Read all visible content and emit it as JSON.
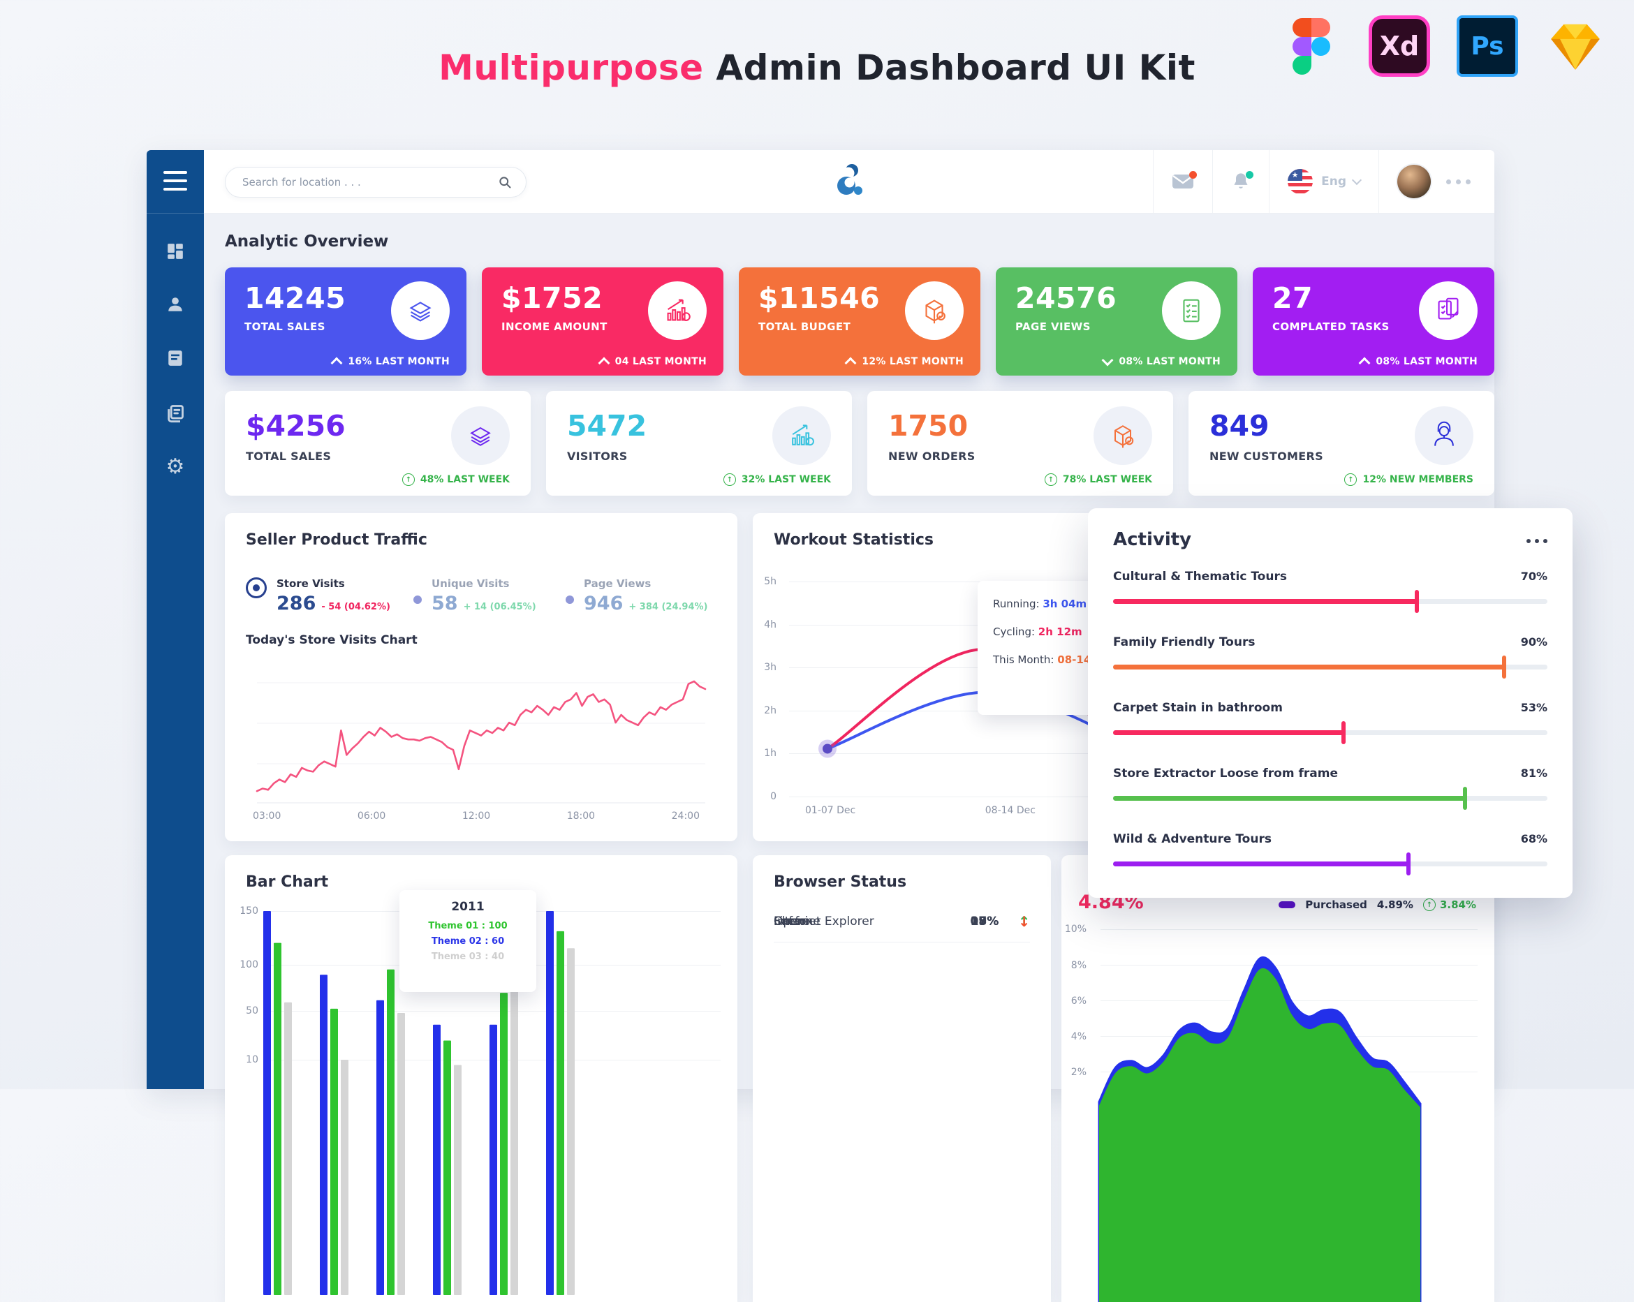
{
  "header": {
    "title_accent": "Multipurpose",
    "title_rest": " Admin Dashboard UI Kit",
    "accent_color": "#fa2d6c",
    "xd_label": "Xd",
    "ps_label": "Ps",
    "app_icons": [
      "figma",
      "adobe-xd",
      "photoshop",
      "sketch"
    ]
  },
  "topnav": {
    "search_placeholder": "Search for location . . .",
    "language": "Eng"
  },
  "sidebar": {
    "items": [
      "dashboard",
      "customers",
      "reports",
      "pages",
      "settings"
    ]
  },
  "overview": {
    "heading": "Analytic Overview",
    "cards": [
      {
        "value": "14245",
        "label": "TOTAL SALES",
        "delta": "16% LAST MONTH",
        "direction": "up",
        "color": "#4b55ee"
      },
      {
        "value": "$1752",
        "label": "INCOME AMOUNT",
        "delta": "04 LAST MONTH",
        "direction": "up",
        "color": "#f92a64"
      },
      {
        "value": "$11546",
        "label": "TOTAL BUDGET",
        "delta": "12% LAST MONTH",
        "direction": "up",
        "color": "#f4713b"
      },
      {
        "value": "24576",
        "label": "PAGE VIEWS",
        "delta": "08% LAST MONTH",
        "direction": "down",
        "color": "#58bf63"
      },
      {
        "value": "27",
        "label": "COMPLATED TASKS",
        "delta": "08% LAST MONTH",
        "direction": "up",
        "color": "#a21ef2"
      }
    ],
    "light_cards": [
      {
        "value": "$4256",
        "label": "TOTAL SALES",
        "note": "48% LAST WEEK",
        "value_color": "#6d28f0"
      },
      {
        "value": "5472",
        "label": "VISITORS",
        "note": "32% LAST WEEK",
        "value_color": "#38c2de"
      },
      {
        "value": "1750",
        "label": "NEW ORDERS",
        "note": "78% LAST WEEK",
        "value_color": "#f4713b"
      },
      {
        "value": "849",
        "label": "NEW CUSTOMERS",
        "note": "12% NEW MEMBERS",
        "value_color": "#2b2fd9"
      }
    ]
  },
  "seller_traffic": {
    "title": "Seller Product Traffic",
    "subtitle": "Today's Store Visits Chart",
    "metrics": [
      {
        "label": "Store Visits",
        "value": "286",
        "delta": "- 54 (04.62%)",
        "delta_color": "#f0245f",
        "value_color": "#2b4b8f",
        "active": true
      },
      {
        "label": "Unique Visits",
        "value": "58",
        "delta": "+ 14 (06.45%)",
        "delta_color": "#7ed8ac",
        "value_color": "#8ea9d2"
      },
      {
        "label": "Page Views",
        "value": "946",
        "delta": "+ 384 (24.94%)",
        "delta_color": "#7ed8ac",
        "value_color": "#8ea9d2"
      }
    ],
    "chart": {
      "type": "line",
      "color": "#f4537f",
      "xticks": [
        "03:00",
        "06:00",
        "12:00",
        "18:00",
        "24:00"
      ],
      "values": [
        8,
        10,
        9,
        14,
        17,
        15,
        21,
        19,
        26,
        24,
        23,
        28,
        31,
        29,
        27,
        55,
        36,
        41,
        45,
        50,
        54,
        51,
        57,
        54,
        50,
        52,
        49,
        48,
        48,
        47,
        49,
        50,
        48,
        46,
        42,
        40,
        25,
        43,
        55,
        53,
        51,
        55,
        53,
        57,
        55,
        61,
        59,
        67,
        71,
        69,
        74,
        71,
        67,
        73,
        71,
        77,
        79,
        84,
        74,
        81,
        83,
        77,
        79,
        75,
        61,
        67,
        63,
        61,
        59,
        65,
        69,
        67,
        73,
        71,
        75,
        77,
        79,
        91,
        93,
        89,
        87
      ]
    }
  },
  "workout": {
    "title": "Workout Statistics",
    "yticks": [
      "5h",
      "4h",
      "3h",
      "2h",
      "1h",
      "0"
    ],
    "xticks": [
      "01-07 Dec",
      "08-14 Dec"
    ],
    "tooltip": {
      "running_label": "Running:",
      "running": "3h 04m",
      "running_color": "#3d56f0",
      "cycling_label": "Cycling:",
      "cycling": "2h 12m",
      "cycling_color": "#f0255f",
      "month_label": "This Month:",
      "month": "08-14",
      "month_color": "#f4713b"
    },
    "chart": {
      "type": "line",
      "ymax": 5,
      "series": [
        {
          "name": "cycling",
          "color": "#f0255f",
          "values": [
            1.1,
            3.42,
            0.55
          ]
        },
        {
          "name": "running",
          "color": "#3d56f0",
          "values": [
            1.1,
            2.42,
            1.0
          ]
        }
      ]
    }
  },
  "activity": {
    "title": "Activity",
    "items": [
      {
        "label": "Cultural & Thematic Tours",
        "value": "70%",
        "pct": 70,
        "color": "#f7295f"
      },
      {
        "label": "Family Friendly Tours",
        "value": "90%",
        "pct": 90,
        "color": "#f4713b"
      },
      {
        "label": "Carpet Stain in bathroom",
        "value": "53%",
        "pct": 53,
        "color": "#f7295f"
      },
      {
        "label": "Store Extractor Loose from frame",
        "value": "81%",
        "pct": 81,
        "color": "#56c04d"
      },
      {
        "label": "Wild & Adventure Tours",
        "value": "68%",
        "pct": 68,
        "color": "#9c1ef0"
      }
    ]
  },
  "bar_chart": {
    "title": "Bar Chart",
    "yticks": [
      "150",
      "100",
      "50",
      "10"
    ],
    "tooltip": {
      "year": "2011",
      "lines": [
        {
          "text": "Theme 01 : 100",
          "color": "#2fc42f"
        },
        {
          "text": "Theme 02 : 60",
          "color": "#2b35e8"
        },
        {
          "text": "Theme 03 : 40",
          "color": "#cfcfcf"
        }
      ]
    },
    "chart": {
      "type": "bar",
      "ymax": 150,
      "series": [
        {
          "name": "Theme 02",
          "color": "#2330ea",
          "values": [
            150,
            90,
            66,
            43,
            43,
            150
          ]
        },
        {
          "name": "Theme 01",
          "color": "#2fc42f",
          "values": [
            120,
            58,
            95,
            28,
            73,
            131
          ]
        },
        {
          "name": "Theme 03",
          "color": "#d5d5d5",
          "values": [
            64,
            10,
            54,
            5,
            115,
            115
          ]
        }
      ]
    }
  },
  "browser_status": {
    "title": "Browser Status",
    "up_color": "#35b34a",
    "down_color": "#f4502e",
    "rows": [
      {
        "name": "Firefox",
        "value": "15%",
        "trend": "up"
      },
      {
        "name": "Chrome",
        "value": "18%",
        "trend": "up"
      },
      {
        "name": "Safari",
        "value": "08%",
        "trend": "down"
      },
      {
        "name": "Internet Explorer",
        "value": "17%",
        "trend": "up"
      },
      {
        "name": "Opere",
        "value": "09%",
        "trend": "down"
      }
    ]
  },
  "purchase_chart": {
    "headline": "4.84%",
    "headline_color": "#f7295f",
    "legend": {
      "label": "Purchased",
      "value": "4.89%",
      "delta": "3.84%",
      "swatch_color": "#5a10c8",
      "delta_color": "#35b34a"
    },
    "yticks": [
      "10%",
      "8%",
      "6%",
      "4%",
      "2%"
    ],
    "chart": {
      "type": "area",
      "ymax": 10,
      "series": [
        {
          "name": "outline",
          "color": "#2330ea",
          "values": [
            0.3,
            2.2,
            2.6,
            2.2,
            2.9,
            4.3,
            4.7,
            4.2,
            4.4,
            6.5,
            8.35,
            7.8,
            5.9,
            5.1,
            5.45,
            5.3,
            3.9,
            2.75,
            2.5,
            1.4,
            0.2
          ]
        },
        {
          "name": "fill",
          "color": "#2fb52f",
          "values": [
            0.1,
            1.9,
            2.3,
            1.9,
            2.55,
            3.9,
            4.15,
            3.6,
            3.9,
            6.0,
            7.75,
            7.2,
            5.2,
            4.4,
            4.7,
            4.6,
            3.3,
            2.3,
            2.1,
            1.0,
            0.0
          ]
        }
      ]
    }
  }
}
